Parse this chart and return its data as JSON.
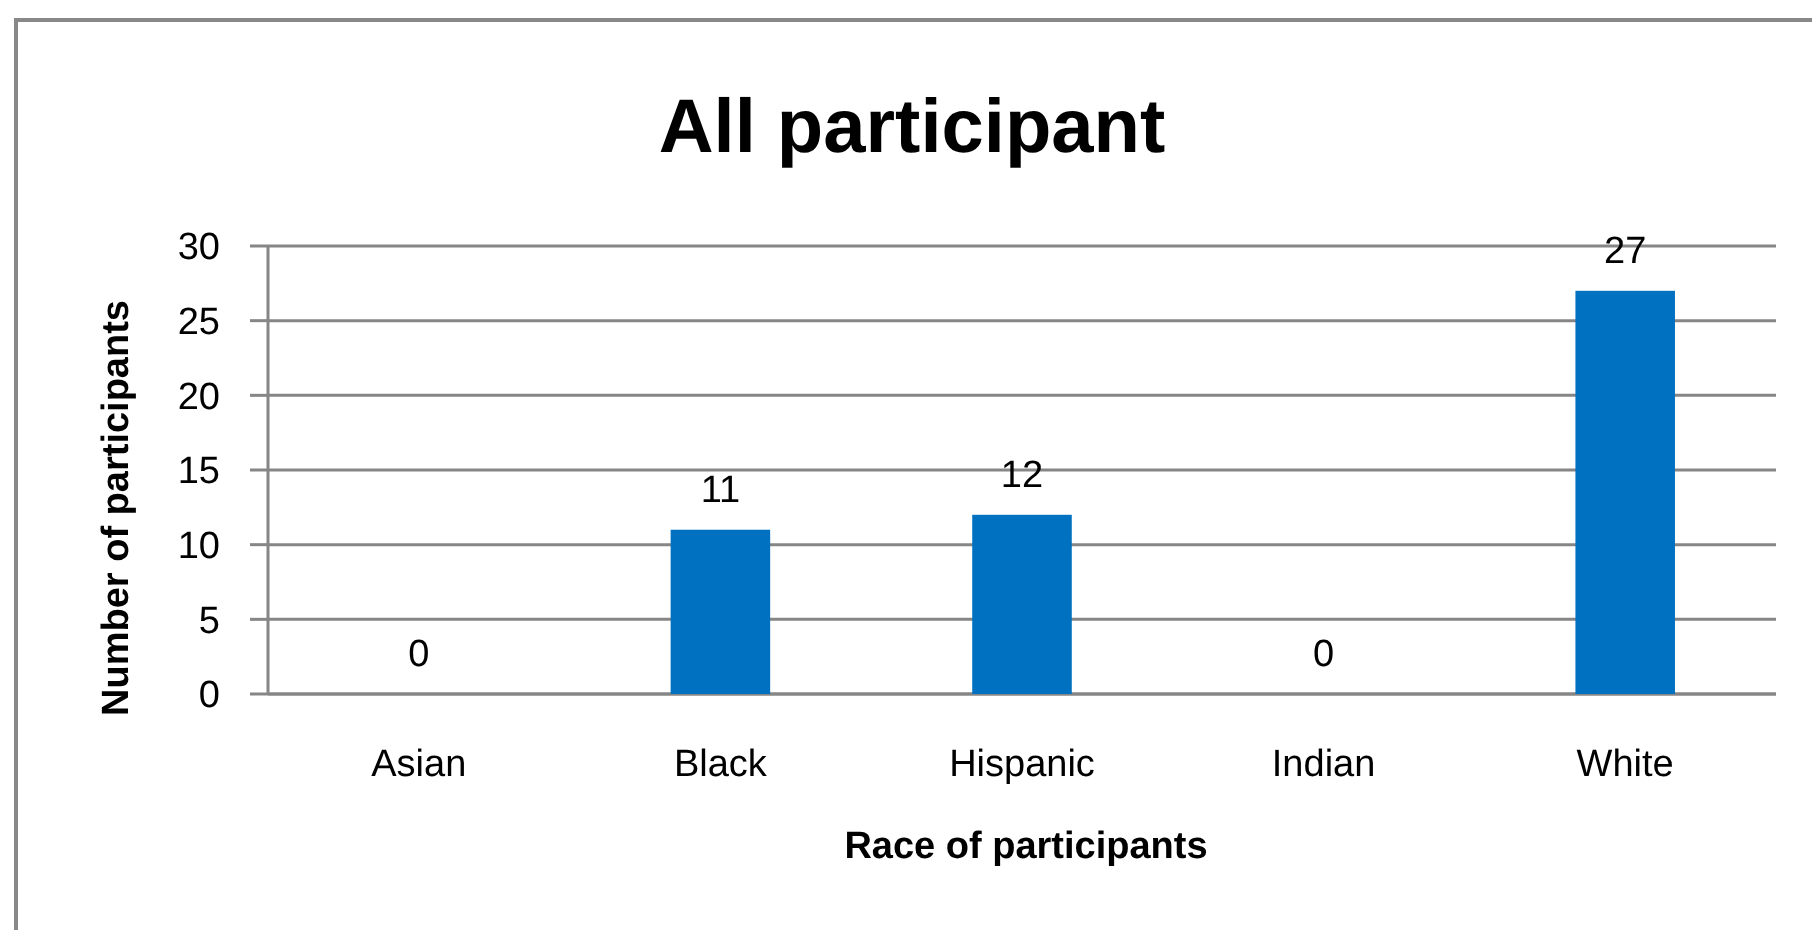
{
  "chart_data": {
    "type": "bar",
    "title": "All participant",
    "xlabel": "Race of participants",
    "ylabel": "Number of participants",
    "categories": [
      "Asian",
      "Black",
      "Hispanic",
      "Indian",
      "White"
    ],
    "values": [
      0,
      11,
      12,
      0,
      27
    ],
    "color": "#0070c0",
    "ylim": [
      0,
      30
    ],
    "yticks": [
      0,
      5,
      10,
      15,
      20,
      25,
      30
    ],
    "grid": "y",
    "data_labels": true
  }
}
